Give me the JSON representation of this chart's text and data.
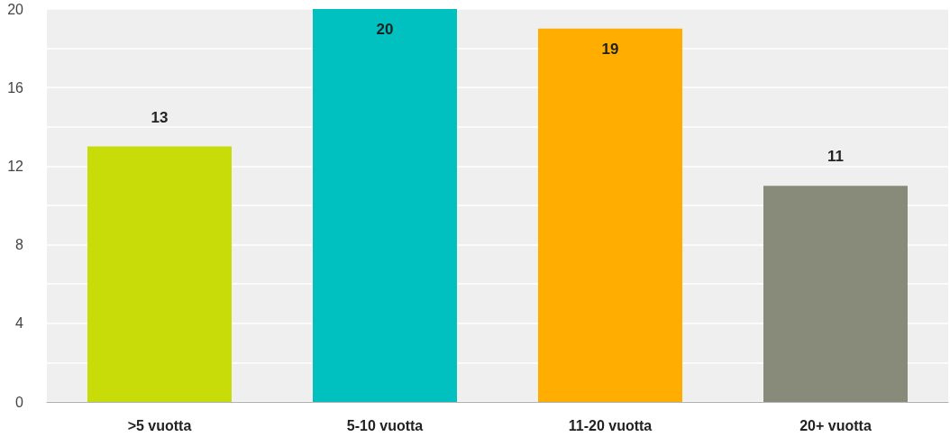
{
  "chart_data": {
    "type": "bar",
    "categories": [
      ">5 vuotta",
      "5-10 vuotta",
      "11-20 vuotta",
      "20+ vuotta"
    ],
    "values": [
      13,
      20,
      19,
      11
    ],
    "colors": [
      "#c8dc0a",
      "#00c0c0",
      "#ffad00",
      "#888a7a"
    ],
    "ylim": [
      0,
      20
    ],
    "yticks": [
      0,
      {
        "value": 2,
        "label": null
      },
      4,
      {
        "value": 6,
        "label": null
      },
      8,
      {
        "value": 10,
        "label": null
      },
      12,
      {
        "value": 14,
        "label": null
      },
      16,
      {
        "value": 18,
        "label": null
      },
      20
    ],
    "grid": "y",
    "data_labels": true
  }
}
